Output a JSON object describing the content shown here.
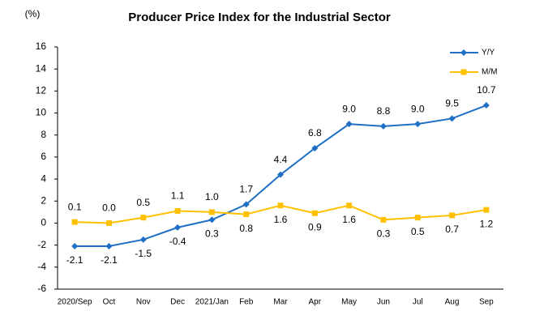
{
  "chart_data": {
    "type": "line",
    "title": "Producer Price Index for the Industrial Sector",
    "y_label": "(%)",
    "categories": [
      "2020/Sep",
      "Oct",
      "Nov",
      "Dec",
      "2021/Jan",
      "Feb",
      "Mar",
      "Apr",
      "May",
      "Jun",
      "Jul",
      "Aug",
      "Sep"
    ],
    "series": [
      {
        "name": "Y/Y",
        "color": "#1f6fc5",
        "marker": "diamond",
        "values": [
          -2.1,
          -2.1,
          -1.5,
          -0.4,
          0.3,
          1.7,
          4.4,
          6.8,
          9.0,
          8.8,
          9.0,
          9.5,
          10.7
        ],
        "value_labels": [
          "-2.1",
          "-2.1",
          "-1.5",
          "-0.4",
          "0.3",
          "1.7",
          "4.4",
          "6.8",
          "9.0",
          "8.8",
          "9.0",
          "9.5",
          "10.7"
        ]
      },
      {
        "name": "M/M",
        "color": "#ffc000",
        "marker": "square",
        "values": [
          0.1,
          0.0,
          0.5,
          1.1,
          1.0,
          0.8,
          1.6,
          0.9,
          1.6,
          0.3,
          0.5,
          0.7,
          1.2
        ],
        "value_labels": [
          "0.1",
          "0.0",
          "0.5",
          "1.1",
          "1.0",
          "0.8",
          "1.6",
          "0.9",
          "1.6",
          "0.3",
          "0.5",
          "0.7",
          "1.2"
        ]
      }
    ],
    "ylim": [
      -6,
      16
    ],
    "yticks": [
      -6,
      -4,
      -2,
      0,
      2,
      4,
      6,
      8,
      10,
      12,
      14,
      16
    ],
    "grid": false,
    "legend": "top-right"
  }
}
